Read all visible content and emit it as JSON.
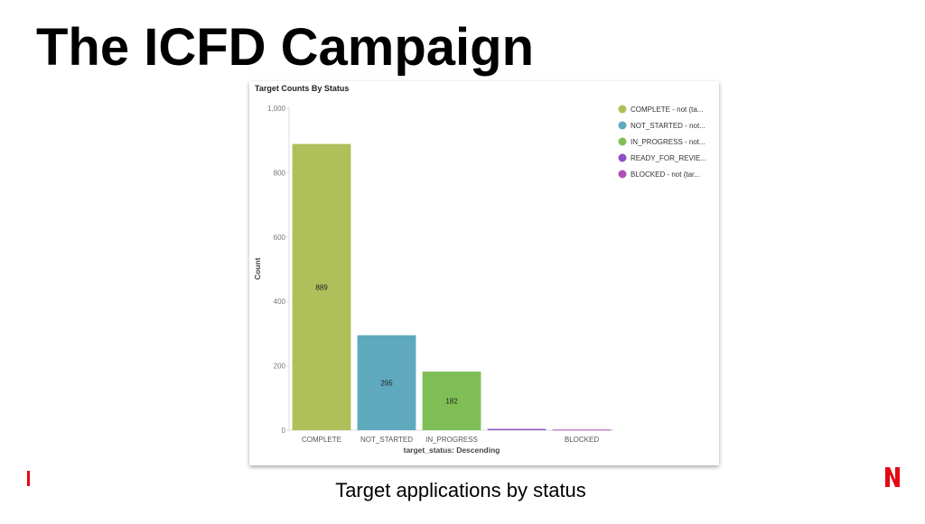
{
  "slide_title": "The ICFD Campaign",
  "caption": "Target applications by status",
  "chart_data": {
    "type": "bar",
    "title": "Target Counts By Status",
    "categories": [
      "COMPLETE",
      "NOT_STARTED",
      "IN_PROGRESS",
      null,
      "BLOCKED"
    ],
    "values": [
      889,
      295,
      182,
      4,
      2
    ],
    "colors": [
      "#afbf5a",
      "#5fa9bf",
      "#7fbf55",
      "#8e4fc9",
      "#b150b5"
    ],
    "x_label": "target_status: Descending",
    "y_label": "Count",
    "ylim": [
      0,
      1000
    ],
    "yticks": [
      0,
      200,
      400,
      600,
      800,
      {
        "value": 1000,
        "label": "1,000"
      }
    ],
    "legend_position": "upper right",
    "legend": [
      {
        "name": "COMPLETE - not (ta...",
        "color": "#afbf5a"
      },
      {
        "name": "NOT_STARTED - not...",
        "color": "#5fa9bf"
      },
      {
        "name": "IN_PROGRESS - not...",
        "color": "#7fbf55"
      },
      {
        "name": "READY_FOR_REVIE...",
        "color": "#8e4fc9"
      },
      {
        "name": "BLOCKED - not (tar...",
        "color": "#b150b5"
      }
    ]
  }
}
